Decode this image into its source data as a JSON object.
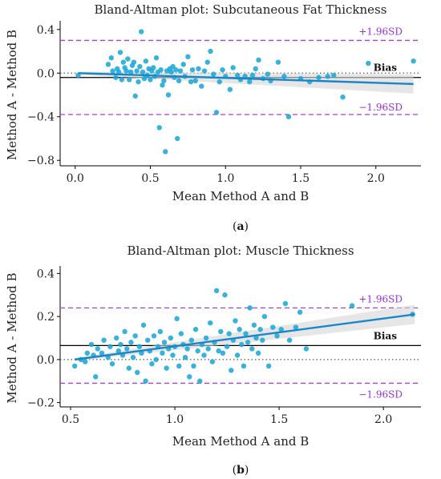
{
  "chart_data": [
    {
      "type": "scatter",
      "panel": "(a)",
      "panel_parts": {
        "open": "(",
        "letter": "a",
        "close": ")"
      },
      "title": "Bland-Altman plot: Subcutaneous Fat Thickness",
      "xlabel": "Mean Method A and B",
      "ylabel": "Method A - Method B",
      "xlim": [
        -0.1,
        2.3
      ],
      "ylim": [
        -0.85,
        0.45
      ],
      "xticks": [
        0.0,
        0.5,
        1.0,
        1.5,
        2.0
      ],
      "xtick_labels": [
        "0.0",
        "0.5",
        "1.0",
        "1.5",
        "2.0"
      ],
      "yticks": [
        -0.8,
        -0.4,
        0.0,
        0.4
      ],
      "ytick_labels": [
        "−0.8",
        "−0.4",
        "0.0",
        "0.4"
      ],
      "bias": -0.04,
      "upper_loa": 0.3,
      "lower_loa": -0.38,
      "upper_label": "+1.96SD",
      "lower_label": "−1.96SD",
      "bias_label": "Bias",
      "trend": {
        "x": [
          0.02,
          2.25
        ],
        "y": [
          0.0,
          -0.1
        ]
      },
      "points": [
        [
          0.02,
          -0.02
        ],
        [
          0.22,
          0.08
        ],
        [
          0.24,
          0.14
        ],
        [
          0.25,
          0.02
        ],
        [
          0.27,
          -0.04
        ],
        [
          0.28,
          0.04
        ],
        [
          0.29,
          0.01
        ],
        [
          0.3,
          0.19
        ],
        [
          0.31,
          -0.06
        ],
        [
          0.32,
          0.1
        ],
        [
          0.33,
          0.05
        ],
        [
          0.34,
          0.02
        ],
        [
          0.35,
          0.13
        ],
        [
          0.36,
          -0.06
        ],
        [
          0.37,
          0.01
        ],
        [
          0.38,
          0.07
        ],
        [
          0.39,
          0.1
        ],
        [
          0.4,
          -0.21
        ],
        [
          0.41,
          0.02
        ],
        [
          0.42,
          -0.08
        ],
        [
          0.43,
          0.06
        ],
        [
          0.44,
          0.38
        ],
        [
          0.45,
          0.01
        ],
        [
          0.46,
          -0.05
        ],
        [
          0.47,
          0.11
        ],
        [
          0.48,
          -0.02
        ],
        [
          0.49,
          0.04
        ],
        [
          0.5,
          -0.06
        ],
        [
          0.51,
          0.02
        ],
        [
          0.52,
          0.05
        ],
        [
          0.53,
          -0.03
        ],
        [
          0.54,
          0.14
        ],
        [
          0.55,
          0.01
        ],
        [
          0.56,
          -0.5
        ],
        [
          0.57,
          0.03
        ],
        [
          0.58,
          -0.11
        ],
        [
          0.59,
          -0.07
        ],
        [
          0.6,
          -0.72
        ],
        [
          0.61,
          0.02
        ],
        [
          0.62,
          -0.2
        ],
        [
          0.63,
          0.04
        ],
        [
          0.64,
          0.01
        ],
        [
          0.65,
          0.06
        ],
        [
          0.66,
          -0.04
        ],
        [
          0.67,
          0.03
        ],
        [
          0.68,
          -0.6
        ],
        [
          0.69,
          -0.07
        ],
        [
          0.7,
          0.02
        ],
        [
          0.72,
          0.08
        ],
        [
          0.73,
          -0.03
        ],
        [
          0.75,
          0.15
        ],
        [
          0.77,
          -0.08
        ],
        [
          0.78,
          0.03
        ],
        [
          0.8,
          -0.07
        ],
        [
          0.82,
          0.04
        ],
        [
          0.84,
          -0.12
        ],
        [
          0.86,
          0.02
        ],
        [
          0.88,
          0.1
        ],
        [
          0.9,
          0.2
        ],
        [
          0.92,
          -0.01
        ],
        [
          0.94,
          -0.36
        ],
        [
          0.96,
          -0.08
        ],
        [
          0.98,
          0.03
        ],
        [
          1.0,
          -0.03
        ],
        [
          1.03,
          -0.15
        ],
        [
          1.05,
          0.05
        ],
        [
          1.08,
          -0.02
        ],
        [
          1.1,
          -0.06
        ],
        [
          1.13,
          -0.03
        ],
        [
          1.16,
          -0.08
        ],
        [
          1.18,
          -0.02
        ],
        [
          1.2,
          0.04
        ],
        [
          1.22,
          0.12
        ],
        [
          1.25,
          -0.05
        ],
        [
          1.28,
          -0.01
        ],
        [
          1.3,
          -0.07
        ],
        [
          1.35,
          0.1
        ],
        [
          1.39,
          -0.03
        ],
        [
          1.42,
          -0.4
        ],
        [
          1.5,
          -0.05
        ],
        [
          1.56,
          -0.08
        ],
        [
          1.62,
          -0.04
        ],
        [
          1.68,
          -0.03
        ],
        [
          1.72,
          -0.02
        ],
        [
          1.78,
          -0.22
        ],
        [
          1.95,
          0.09
        ],
        [
          2.25,
          0.11
        ]
      ]
    },
    {
      "type": "scatter",
      "panel": "(b)",
      "panel_parts": {
        "open": "(",
        "letter": "b",
        "close": ")"
      },
      "title": "Bland-Altman plot: Muscle Thickness",
      "xlabel": "Mean Method A and B",
      "ylabel": "Method A - Method B",
      "xlim": [
        0.45,
        2.18
      ],
      "ylim": [
        -0.22,
        0.42
      ],
      "xticks": [
        0.5,
        1.0,
        1.5,
        2.0
      ],
      "xtick_labels": [
        "0.5",
        "1.0",
        "1.5",
        "2.0"
      ],
      "yticks": [
        -0.2,
        0.0,
        0.2,
        0.4
      ],
      "ytick_labels": [
        "−0.2",
        "0.0",
        "0.2",
        "0.4"
      ],
      "bias": 0.065,
      "upper_loa": 0.24,
      "lower_loa": -0.11,
      "upper_label": "+1.96SD",
      "lower_label": "−1.96SD",
      "bias_label": "Bias",
      "trend": {
        "x": [
          0.52,
          2.15
        ],
        "y": [
          0.0,
          0.21
        ]
      },
      "points": [
        [
          0.52,
          -0.03
        ],
        [
          0.55,
          0.0
        ],
        [
          0.57,
          -0.01
        ],
        [
          0.58,
          0.03
        ],
        [
          0.6,
          0.07
        ],
        [
          0.61,
          0.02
        ],
        [
          0.62,
          -0.08
        ],
        [
          0.63,
          0.05
        ],
        [
          0.65,
          0.03
        ],
        [
          0.66,
          0.09
        ],
        [
          0.68,
          0.01
        ],
        [
          0.69,
          0.06
        ],
        [
          0.7,
          -0.02
        ],
        [
          0.72,
          0.1
        ],
        [
          0.73,
          0.04
        ],
        [
          0.74,
          0.07
        ],
        [
          0.75,
          0.02
        ],
        [
          0.76,
          0.13
        ],
        [
          0.77,
          0.05
        ],
        [
          0.78,
          -0.04
        ],
        [
          0.79,
          0.08
        ],
        [
          0.8,
          0.01
        ],
        [
          0.81,
          0.11
        ],
        [
          0.82,
          -0.06
        ],
        [
          0.83,
          0.06
        ],
        [
          0.84,
          0.03
        ],
        [
          0.85,
          0.16
        ],
        [
          0.86,
          -0.1
        ],
        [
          0.87,
          0.09
        ],
        [
          0.88,
          0.04
        ],
        [
          0.89,
          -0.02
        ],
        [
          0.9,
          0.11
        ],
        [
          0.91,
          0.0
        ],
        [
          0.92,
          0.06
        ],
        [
          0.93,
          0.13
        ],
        [
          0.94,
          0.03
        ],
        [
          0.95,
          0.08
        ],
        [
          0.96,
          -0.04
        ],
        [
          0.97,
          0.05
        ],
        [
          0.98,
          0.1
        ],
        [
          0.99,
          0.02
        ],
        [
          1.0,
          0.06
        ],
        [
          1.01,
          0.19
        ],
        [
          1.02,
          -0.03
        ],
        [
          1.03,
          0.12
        ],
        [
          1.04,
          0.07
        ],
        [
          1.05,
          0.01
        ],
        [
          1.06,
          0.05
        ],
        [
          1.07,
          -0.08
        ],
        [
          1.08,
          0.09
        ],
        [
          1.09,
          -0.03
        ],
        [
          1.1,
          0.14
        ],
        [
          1.11,
          0.04
        ],
        [
          1.12,
          -0.1
        ],
        [
          1.13,
          0.07
        ],
        [
          1.14,
          0.02
        ],
        [
          1.15,
          0.1
        ],
        [
          1.16,
          0.05
        ],
        [
          1.17,
          0.17
        ],
        [
          1.18,
          -0.01
        ],
        [
          1.19,
          0.08
        ],
        [
          1.2,
          0.32
        ],
        [
          1.21,
          0.04
        ],
        [
          1.22,
          0.13
        ],
        [
          1.23,
          0.03
        ],
        [
          1.24,
          0.3
        ],
        [
          1.25,
          0.06
        ],
        [
          1.26,
          0.12
        ],
        [
          1.27,
          -0.05
        ],
        [
          1.28,
          0.09
        ],
        [
          1.29,
          0.18
        ],
        [
          1.3,
          0.02
        ],
        [
          1.31,
          0.14
        ],
        [
          1.32,
          0.07
        ],
        [
          1.33,
          -0.03
        ],
        [
          1.34,
          0.12
        ],
        [
          1.35,
          0.08
        ],
        [
          1.36,
          0.24
        ],
        [
          1.37,
          0.05
        ],
        [
          1.38,
          0.16
        ],
        [
          1.39,
          0.1
        ],
        [
          1.4,
          0.03
        ],
        [
          1.41,
          0.14
        ],
        [
          1.42,
          0.09
        ],
        [
          1.43,
          0.2
        ],
        [
          1.45,
          -0.03
        ],
        [
          1.47,
          0.15
        ],
        [
          1.49,
          0.11
        ],
        [
          1.51,
          0.14
        ],
        [
          1.53,
          0.26
        ],
        [
          1.55,
          0.09
        ],
        [
          1.58,
          0.15
        ],
        [
          1.6,
          0.22
        ],
        [
          1.63,
          0.05
        ],
        [
          1.85,
          0.25
        ],
        [
          2.14,
          0.21
        ]
      ]
    }
  ]
}
